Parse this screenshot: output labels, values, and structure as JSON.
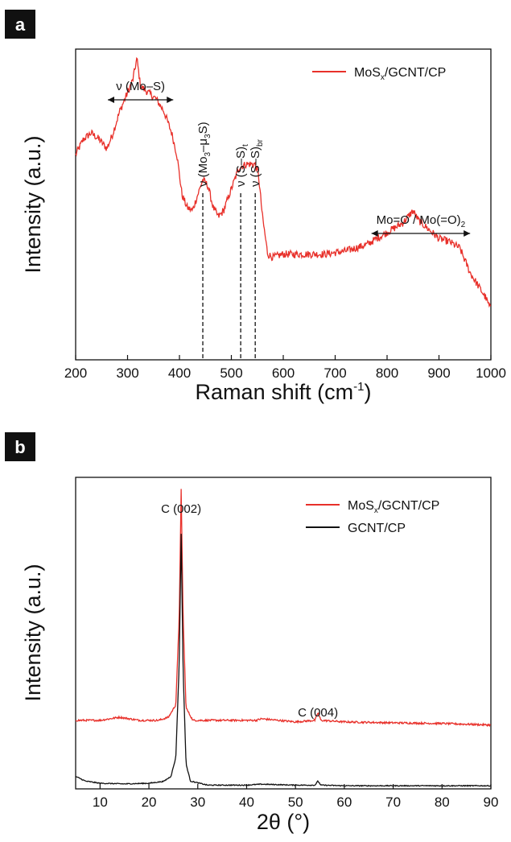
{
  "chart_data": [
    {
      "panel": "a",
      "type": "line",
      "xlabel": "Raman shift (cm",
      "xlabel_sup": "-1",
      "xlabel_end": ")",
      "ylabel": "Intensity (a.u.)",
      "xlim": [
        200,
        1000
      ],
      "x_ticks": [
        200,
        300,
        400,
        500,
        600,
        700,
        800,
        900,
        1000
      ],
      "y_ticks": [],
      "legend_position": "top-right",
      "series": [
        {
          "name": "MoS",
          "name_sub": "x",
          "name_rest": "/GCNT/CP",
          "color": "#e8302a",
          "points": [
            [
              200,
              0.66
            ],
            [
              215,
              0.71
            ],
            [
              230,
              0.73
            ],
            [
              245,
              0.71
            ],
            [
              260,
              0.68
            ],
            [
              270,
              0.72
            ],
            [
              285,
              0.8
            ],
            [
              300,
              0.86
            ],
            [
              310,
              0.9
            ],
            [
              318,
              0.97
            ],
            [
              325,
              0.88
            ],
            [
              340,
              0.86
            ],
            [
              355,
              0.84
            ],
            [
              370,
              0.8
            ],
            [
              385,
              0.73
            ],
            [
              395,
              0.66
            ],
            [
              405,
              0.53
            ],
            [
              415,
              0.49
            ],
            [
              425,
              0.48
            ],
            [
              435,
              0.53
            ],
            [
              445,
              0.58
            ],
            [
              455,
              0.56
            ],
            [
              465,
              0.49
            ],
            [
              475,
              0.46
            ],
            [
              485,
              0.48
            ],
            [
              500,
              0.55
            ],
            [
              515,
              0.62
            ],
            [
              530,
              0.63
            ],
            [
              545,
              0.63
            ],
            [
              552,
              0.6
            ],
            [
              560,
              0.46
            ],
            [
              570,
              0.34
            ],
            [
              580,
              0.33
            ],
            [
              600,
              0.34
            ],
            [
              640,
              0.34
            ],
            [
              680,
              0.34
            ],
            [
              720,
              0.35
            ],
            [
              760,
              0.37
            ],
            [
              800,
              0.41
            ],
            [
              830,
              0.44
            ],
            [
              850,
              0.48
            ],
            [
              860,
              0.45
            ],
            [
              880,
              0.42
            ],
            [
              900,
              0.39
            ],
            [
              920,
              0.38
            ],
            [
              940,
              0.36
            ],
            [
              960,
              0.28
            ],
            [
              975,
              0.24
            ],
            [
              990,
              0.2
            ],
            [
              1000,
              0.16
            ]
          ],
          "noise": 0.012
        }
      ],
      "annotations": [
        {
          "text": "ν (Mo–S)",
          "arrow_from": 262,
          "arrow_to": 388,
          "kind": "range"
        },
        {
          "text": "ν (Mo",
          "sub1": "3",
          "text2": "–μ",
          "sub2": "3",
          "text3": "S)",
          "x": 445,
          "kind": "vline"
        },
        {
          "text": "ν (S–S)",
          "sub1": "t",
          "x": 518,
          "kind": "vline"
        },
        {
          "text": "ν (S–S)",
          "sub1": "br",
          "x": 546,
          "kind": "vline"
        },
        {
          "text": "Mo=O / Mo(=O)",
          "sub1": "2",
          "arrow_from": 770,
          "arrow_to": 960,
          "kind": "range"
        }
      ]
    },
    {
      "panel": "b",
      "type": "line",
      "xlabel": "2θ (°)",
      "ylabel": "Intensity (a.u.)",
      "xlim": [
        5,
        90
      ],
      "x_ticks": [
        10,
        20,
        30,
        40,
        50,
        60,
        70,
        80,
        90
      ],
      "y_ticks": [],
      "legend_position": "top-right",
      "series": [
        {
          "name": "MoS",
          "name_sub": "x",
          "name_rest": "/GCNT/CP",
          "color": "#e8302a",
          "baseline": 0.22,
          "points": [
            [
              5,
              0.22
            ],
            [
              10,
              0.22
            ],
            [
              14,
              0.23
            ],
            [
              18,
              0.22
            ],
            [
              22,
              0.22
            ],
            [
              24,
              0.23
            ],
            [
              25.5,
              0.27
            ],
            [
              26.2,
              0.55
            ],
            [
              26.6,
              0.96
            ],
            [
              27.0,
              0.55
            ],
            [
              27.6,
              0.26
            ],
            [
              29,
              0.22
            ],
            [
              35,
              0.22
            ],
            [
              42,
              0.22
            ],
            [
              43,
              0.225
            ],
            [
              50,
              0.215
            ],
            [
              54,
              0.22
            ],
            [
              54.6,
              0.245
            ],
            [
              55.2,
              0.22
            ],
            [
              60,
              0.215
            ],
            [
              70,
              0.212
            ],
            [
              80,
              0.21
            ],
            [
              90,
              0.205
            ]
          ],
          "noise": 0.003
        },
        {
          "name": "GCNT/CP",
          "color": "#111111",
          "points": [
            [
              5,
              0.04
            ],
            [
              7,
              0.025
            ],
            [
              10,
              0.018
            ],
            [
              15,
              0.016
            ],
            [
              20,
              0.018
            ],
            [
              23,
              0.024
            ],
            [
              24.5,
              0.04
            ],
            [
              25.5,
              0.1
            ],
            [
              26.2,
              0.4
            ],
            [
              26.6,
              0.82
            ],
            [
              27.0,
              0.38
            ],
            [
              27.6,
              0.08
            ],
            [
              28.5,
              0.025
            ],
            [
              32,
              0.012
            ],
            [
              40,
              0.012
            ],
            [
              43,
              0.015
            ],
            [
              50,
              0.012
            ],
            [
              54,
              0.012
            ],
            [
              54.6,
              0.025
            ],
            [
              55.2,
              0.012
            ],
            [
              60,
              0.01
            ],
            [
              70,
              0.01
            ],
            [
              80,
              0.01
            ],
            [
              90,
              0.01
            ]
          ],
          "noise": 0.0015
        }
      ],
      "annotations": [
        {
          "text": "C (002)",
          "x": 26.6,
          "kind": "label"
        },
        {
          "text": "C (004)",
          "x": 54.6,
          "kind": "label"
        }
      ]
    }
  ],
  "panel_labels": [
    "a",
    "b"
  ]
}
